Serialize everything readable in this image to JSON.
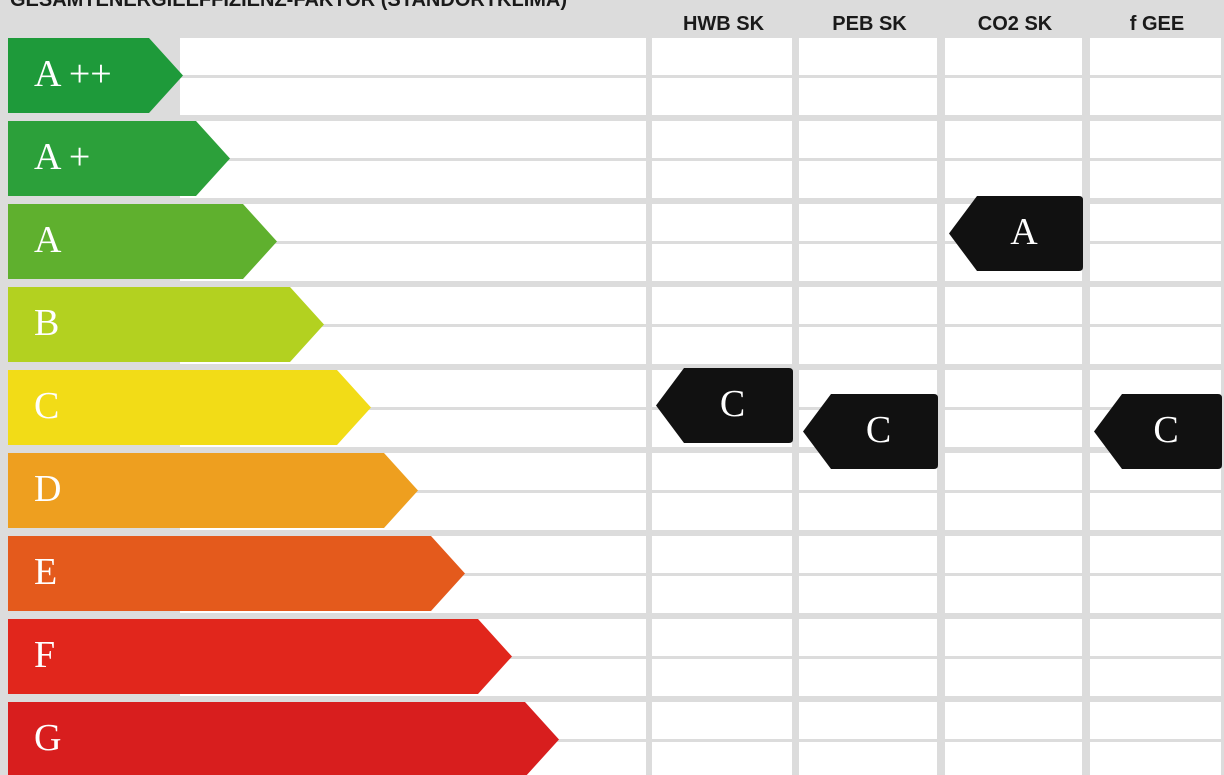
{
  "header": {
    "title": "GESAMTENERGIEEFFIZIENZ-FAKTOR (STANDORTKLIMA)"
  },
  "classes": [
    {
      "label": "A ++",
      "color": "#1e9a3a"
    },
    {
      "label": "A +",
      "color": "#2ca03a"
    },
    {
      "label": "A",
      "color": "#5fb02e"
    },
    {
      "label": "B",
      "color": "#b3d120"
    },
    {
      "label": "C",
      "color": "#f2dc17"
    },
    {
      "label": "D",
      "color": "#ee9f1f"
    },
    {
      "label": "E",
      "color": "#e45a1c"
    },
    {
      "label": "F",
      "color": "#e1261c"
    },
    {
      "label": "G",
      "color": "#d81e1e"
    }
  ],
  "columns": [
    {
      "header": "HWB SK",
      "rating": "C"
    },
    {
      "header": "PEB SK",
      "rating": "C"
    },
    {
      "header": "CO2 SK",
      "rating": "A"
    },
    {
      "header": "f GEE",
      "rating": "C"
    }
  ]
}
